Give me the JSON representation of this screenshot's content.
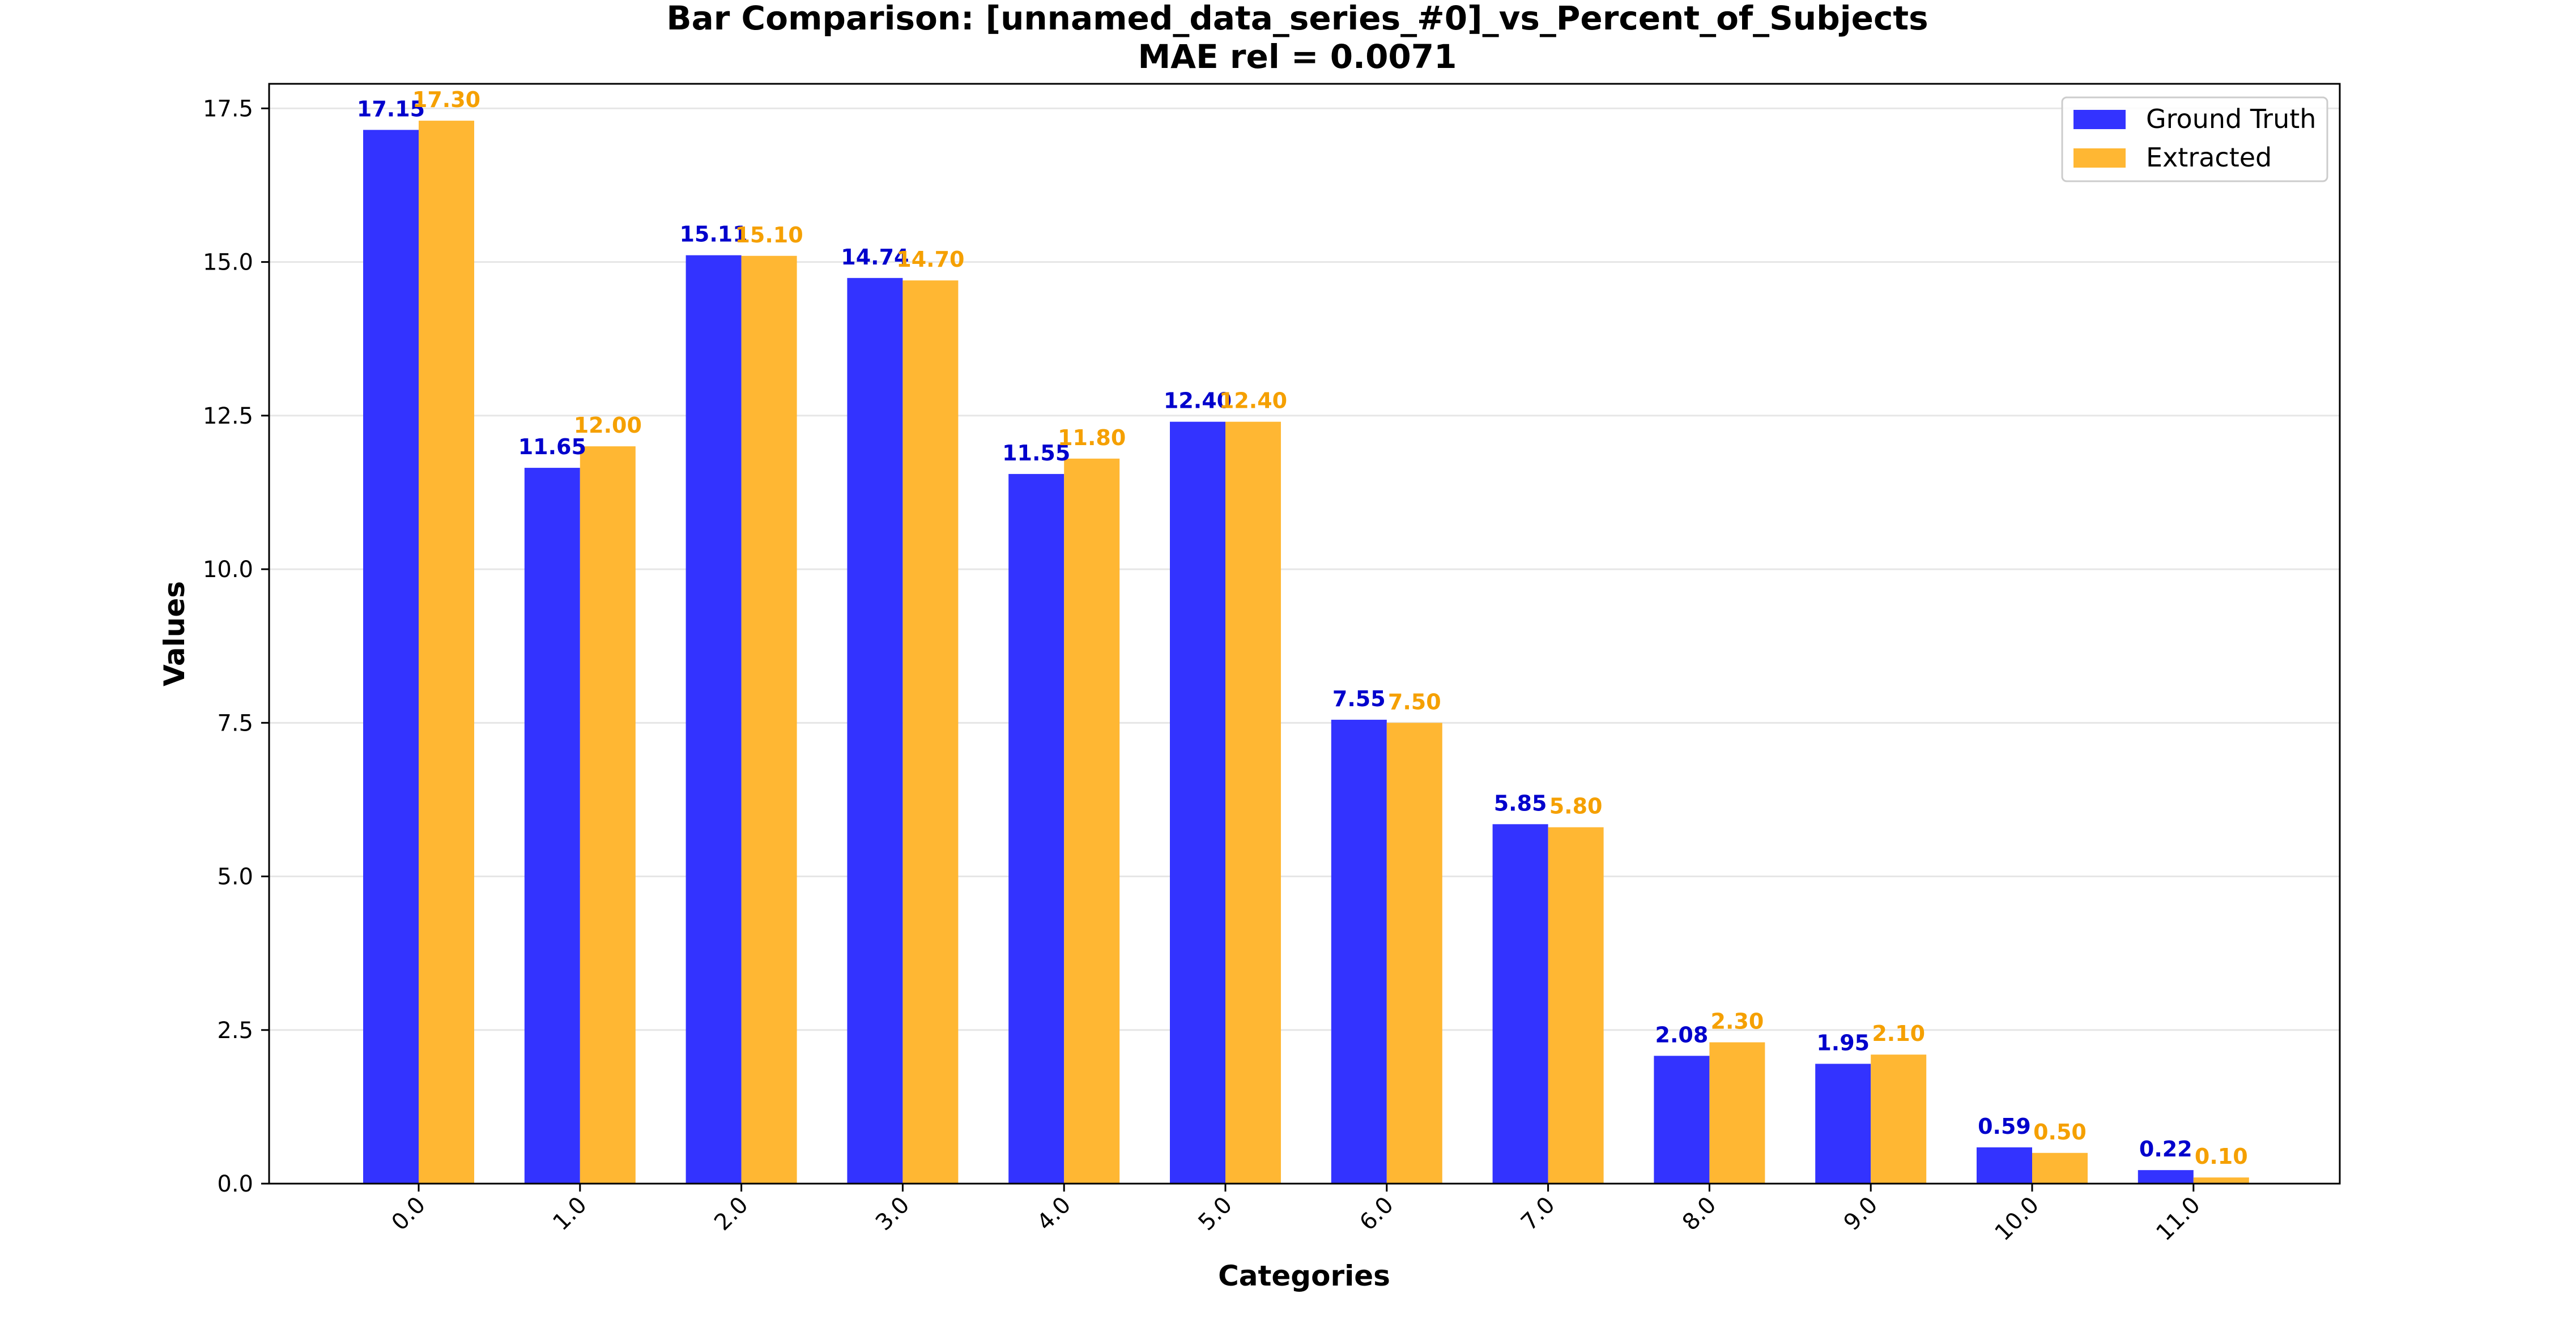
{
  "chart_data": {
    "type": "bar",
    "title": "Bar Comparison: [unnamed_data_series_#0]_vs_Percent_of_Subjects",
    "subtitle": "MAE rel = 0.0071",
    "xlabel": "Categories",
    "ylabel": "Values",
    "categories": [
      "0.0",
      "1.0",
      "2.0",
      "3.0",
      "4.0",
      "5.0",
      "6.0",
      "7.0",
      "8.0",
      "9.0",
      "10.0",
      "11.0"
    ],
    "series": [
      {
        "name": "Ground Truth",
        "color": "#3333ff",
        "label_color": "#0000cc",
        "values": [
          17.15,
          11.65,
          15.11,
          14.74,
          11.55,
          12.4,
          7.55,
          5.85,
          2.08,
          1.95,
          0.59,
          0.22
        ],
        "labels": [
          "17.15",
          "11.65",
          "15.11",
          "14.74",
          "11.55",
          "12.40",
          "7.55",
          "5.85",
          "2.08",
          "1.95",
          "0.59",
          "0.22"
        ]
      },
      {
        "name": "Extracted",
        "color": "#ffb733",
        "label_color": "#f5a000",
        "values": [
          17.3,
          12.0,
          15.1,
          14.7,
          11.8,
          12.4,
          7.5,
          5.8,
          2.3,
          2.1,
          0.5,
          0.1
        ],
        "labels": [
          "17.30",
          "12.00",
          "15.10",
          "14.70",
          "11.80",
          "12.40",
          "7.50",
          "5.80",
          "2.30",
          "2.10",
          "0.50",
          "0.10"
        ]
      }
    ],
    "ylim": [
      0,
      17.9
    ],
    "yticks": [
      0,
      2.5,
      5,
      7.5,
      10,
      12.5,
      15,
      17.5
    ],
    "ytick_labels": [
      "0.0",
      "2.5",
      "5.0",
      "7.5",
      "10.0",
      "12.5",
      "15.0",
      "17.5"
    ],
    "grid": "horizontal",
    "legend_position": "top-right"
  }
}
